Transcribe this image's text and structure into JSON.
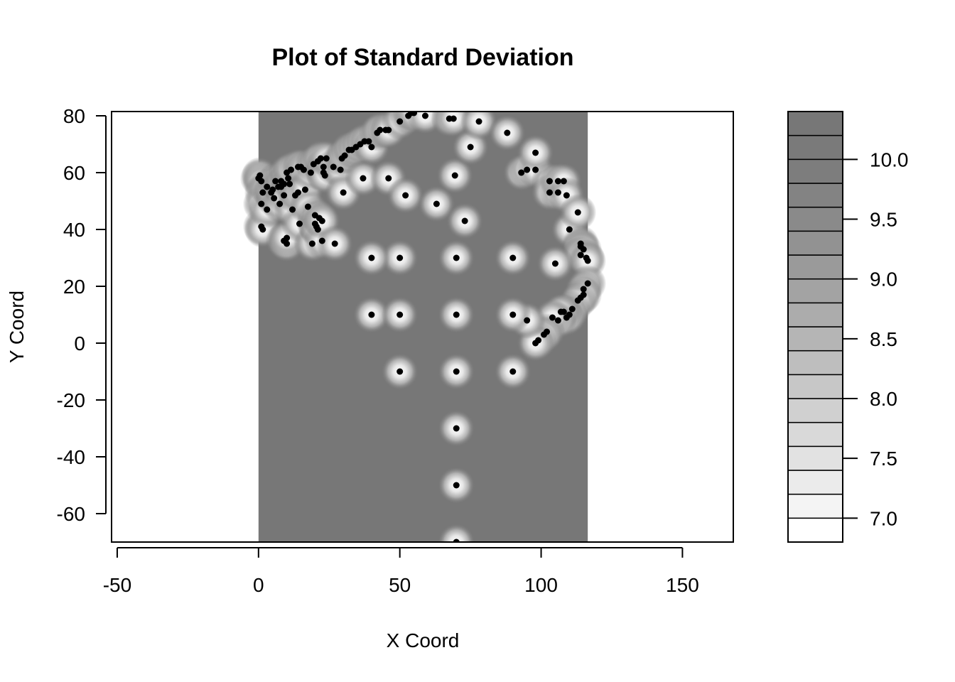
{
  "chart_data": {
    "type": "heatmap",
    "title": "Plot of Standard Deviation",
    "xlabel": "X Coord",
    "ylabel": "Y Coord",
    "xlim": [
      -52,
      168
    ],
    "ylim": [
      -70,
      81.5
    ],
    "x_ticks": [
      "-50",
      "0",
      "50",
      "100",
      "150"
    ],
    "x_tick_values": [
      -50,
      0,
      50,
      100,
      150
    ],
    "y_ticks": [
      "80",
      "60",
      "40",
      "20",
      "0",
      "-20",
      "-40",
      "-60"
    ],
    "y_tick_values": [
      80,
      60,
      40,
      20,
      0,
      -20,
      -40,
      -60
    ],
    "surface_extent_x": [
      0,
      116.5
    ],
    "surface_background_color": "#777777",
    "colorbar": {
      "range": [
        6.8,
        10.4
      ],
      "tick_labels": [
        "10.0",
        "9.5",
        "9.0",
        "8.5",
        "8.0",
        "7.5",
        "7.0"
      ],
      "tick_values": [
        10.0,
        9.5,
        9.0,
        8.5,
        8.0,
        7.5,
        7.0
      ],
      "bins": [
        {
          "from": 6.8,
          "to": 7.0,
          "color": "#ffffff"
        },
        {
          "from": 7.0,
          "to": 7.2,
          "color": "#f4f4f4"
        },
        {
          "from": 7.2,
          "to": 7.4,
          "color": "#ebebeb"
        },
        {
          "from": 7.4,
          "to": 7.6,
          "color": "#e2e2e2"
        },
        {
          "from": 7.6,
          "to": 7.8,
          "color": "#d9d9d9"
        },
        {
          "from": 7.8,
          "to": 8.0,
          "color": "#d0d0d0"
        },
        {
          "from": 8.0,
          "to": 8.2,
          "color": "#c7c7c7"
        },
        {
          "from": 8.2,
          "to": 8.4,
          "color": "#bebebe"
        },
        {
          "from": 8.4,
          "to": 8.6,
          "color": "#b5b5b5"
        },
        {
          "from": 8.6,
          "to": 8.8,
          "color": "#acacac"
        },
        {
          "from": 8.8,
          "to": 9.0,
          "color": "#a3a3a3"
        },
        {
          "from": 9.0,
          "to": 9.2,
          "color": "#9a9a9a"
        },
        {
          "from": 9.2,
          "to": 9.4,
          "color": "#929292"
        },
        {
          "from": 9.4,
          "to": 9.6,
          "color": "#8a8a8a"
        },
        {
          "from": 9.6,
          "to": 9.8,
          "color": "#838383"
        },
        {
          "from": 9.8,
          "to": 10.0,
          "color": "#7d7d7d"
        },
        {
          "from": 10.0,
          "to": 10.2,
          "color": "#7a7a7a"
        },
        {
          "from": 10.2,
          "to": 10.4,
          "color": "#777777"
        }
      ]
    },
    "points": [
      [
        0,
        58
      ],
      [
        0.5,
        59
      ],
      [
        1,
        57
      ],
      [
        1.5,
        53
      ],
      [
        1,
        49
      ],
      [
        1,
        41
      ],
      [
        1.5,
        40
      ],
      [
        3,
        47
      ],
      [
        3,
        55
      ],
      [
        4.5,
        53
      ],
      [
        5.5,
        51
      ],
      [
        5,
        54
      ],
      [
        6,
        57
      ],
      [
        7,
        55
      ],
      [
        7.5,
        49
      ],
      [
        8,
        55
      ],
      [
        8,
        57
      ],
      [
        9,
        56
      ],
      [
        9,
        52
      ],
      [
        9,
        36
      ],
      [
        10,
        35
      ],
      [
        10,
        37
      ],
      [
        10,
        60
      ],
      [
        10.5,
        58
      ],
      [
        11,
        56
      ],
      [
        11.5,
        61
      ],
      [
        12,
        47
      ],
      [
        13,
        52
      ],
      [
        14,
        53
      ],
      [
        14,
        62
      ],
      [
        14.5,
        42
      ],
      [
        15,
        62
      ],
      [
        16,
        61
      ],
      [
        16.5,
        54
      ],
      [
        17.5,
        48
      ],
      [
        18.5,
        60
      ],
      [
        19,
        35
      ],
      [
        19.5,
        63
      ],
      [
        20,
        42
      ],
      [
        20,
        45
      ],
      [
        20.5,
        41
      ],
      [
        21,
        40
      ],
      [
        21,
        64
      ],
      [
        21.5,
        44
      ],
      [
        22,
        65
      ],
      [
        22.5,
        36
      ],
      [
        22.5,
        43
      ],
      [
        23,
        60
      ],
      [
        23,
        62
      ],
      [
        23.5,
        59
      ],
      [
        24,
        65
      ],
      [
        26.5,
        62
      ],
      [
        27,
        35
      ],
      [
        29,
        61
      ],
      [
        29.5,
        65
      ],
      [
        30,
        53
      ],
      [
        30.5,
        66
      ],
      [
        32,
        68
      ],
      [
        33,
        68
      ],
      [
        34.5,
        69
      ],
      [
        36,
        70
      ],
      [
        37.5,
        71
      ],
      [
        37,
        58
      ],
      [
        39,
        71
      ],
      [
        40,
        69
      ],
      [
        42,
        74
      ],
      [
        43,
        75
      ],
      [
        45,
        75
      ],
      [
        46,
        75
      ],
      [
        46,
        58
      ],
      [
        50,
        78
      ],
      [
        52,
        52
      ],
      [
        53,
        80
      ],
      [
        54,
        81
      ],
      [
        55,
        81
      ],
      [
        59,
        80
      ],
      [
        63,
        49
      ],
      [
        67.5,
        79
      ],
      [
        69,
        79
      ],
      [
        69.5,
        59
      ],
      [
        73,
        43
      ],
      [
        75,
        69
      ],
      [
        78,
        78
      ],
      [
        88,
        74
      ],
      [
        93,
        60
      ],
      [
        95,
        61
      ],
      [
        98,
        61
      ],
      [
        98,
        67
      ],
      [
        103,
        57
      ],
      [
        103,
        53
      ],
      [
        106,
        53
      ],
      [
        106,
        57
      ],
      [
        108,
        57
      ],
      [
        109,
        52
      ],
      [
        110,
        40
      ],
      [
        113,
        46
      ],
      [
        114,
        35
      ],
      [
        114,
        34
      ],
      [
        115,
        33
      ],
      [
        114,
        31
      ],
      [
        116,
        30
      ],
      [
        116.5,
        29
      ],
      [
        116.5,
        21
      ],
      [
        115,
        19
      ],
      [
        114,
        16
      ],
      [
        115,
        17
      ],
      [
        113,
        15
      ],
      [
        111,
        12
      ],
      [
        110,
        10
      ],
      [
        109,
        9
      ],
      [
        108,
        11
      ],
      [
        107,
        11
      ],
      [
        106,
        8
      ],
      [
        104,
        9
      ],
      [
        102,
        4
      ],
      [
        101,
        3
      ],
      [
        99,
        1
      ],
      [
        98,
        0
      ],
      [
        95,
        8
      ],
      [
        90,
        10
      ],
      [
        105,
        28
      ],
      [
        90,
        30
      ],
      [
        70,
        30
      ],
      [
        50,
        30
      ],
      [
        40,
        30
      ],
      [
        40,
        10
      ],
      [
        50,
        10
      ],
      [
        70,
        10
      ],
      [
        50,
        -10
      ],
      [
        70,
        -10
      ],
      [
        90,
        -10
      ],
      [
        70,
        -30
      ],
      [
        70,
        -50
      ],
      [
        70,
        -70
      ]
    ]
  }
}
